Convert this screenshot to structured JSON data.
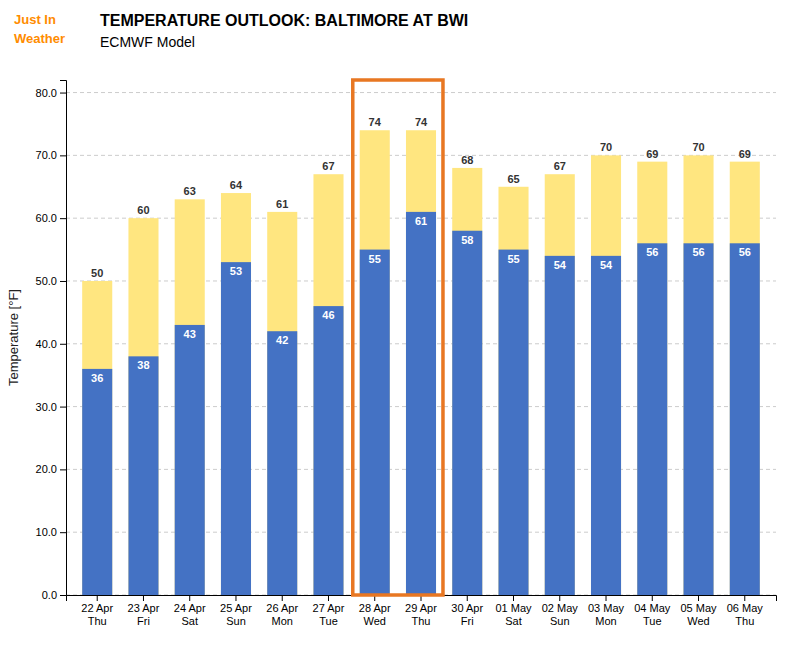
{
  "chart_data": {
    "type": "bar",
    "title": "TEMPERATURE OUTLOOK: BALTIMORE AT BWI",
    "subtitle": "ECMWF Model",
    "ylabel": "Temperature [°F]",
    "categories": [
      "22 Apr\nThu",
      "23 Apr\nFri",
      "24 Apr\nSat",
      "25 Apr\nSun",
      "26 Apr\nMon",
      "27 Apr\nTue",
      "28 Apr\nWed",
      "29 Apr\nThu",
      "30 Apr\nFri",
      "01 May\nSat",
      "02 May\nSun",
      "03 May\nMon",
      "04 May\nTue",
      "05 May\nWed",
      "06 May\nThu"
    ],
    "series": [
      {
        "color": "#FFE680",
        "values": [
          50,
          60,
          63,
          64,
          61,
          67,
          74,
          74,
          68,
          65,
          67,
          70,
          69,
          70,
          69
        ]
      },
      {
        "color": "#4472C4",
        "values": [
          36,
          38,
          43,
          53,
          42,
          46,
          55,
          61,
          58,
          55,
          54,
          54,
          56,
          56,
          56
        ]
      }
    ],
    "ylim": [
      0,
      82
    ],
    "yticks": [
      {
        "value": 0,
        "label": "0.0"
      },
      {
        "value": 10,
        "label": "10.0"
      },
      {
        "value": 20,
        "label": "20.0"
      },
      {
        "value": 30,
        "label": "30.0"
      },
      {
        "value": 40,
        "label": "40.0"
      },
      {
        "value": 50,
        "label": "50.0"
      },
      {
        "value": 60,
        "label": "60.0"
      },
      {
        "value": 70,
        "label": "70.0"
      },
      {
        "value": 80,
        "label": "80.0"
      }
    ],
    "grid": true,
    "data_labels": true,
    "annotations": [
      {
        "text": "Just In",
        "color": "#FF8C00"
      },
      {
        "text": "Weather",
        "color": "#FF8C00"
      },
      {
        "type": "box",
        "x": [
          "28 Apr\nWed",
          "29 Apr\nThu"
        ],
        "color": "#E87722"
      }
    ]
  }
}
